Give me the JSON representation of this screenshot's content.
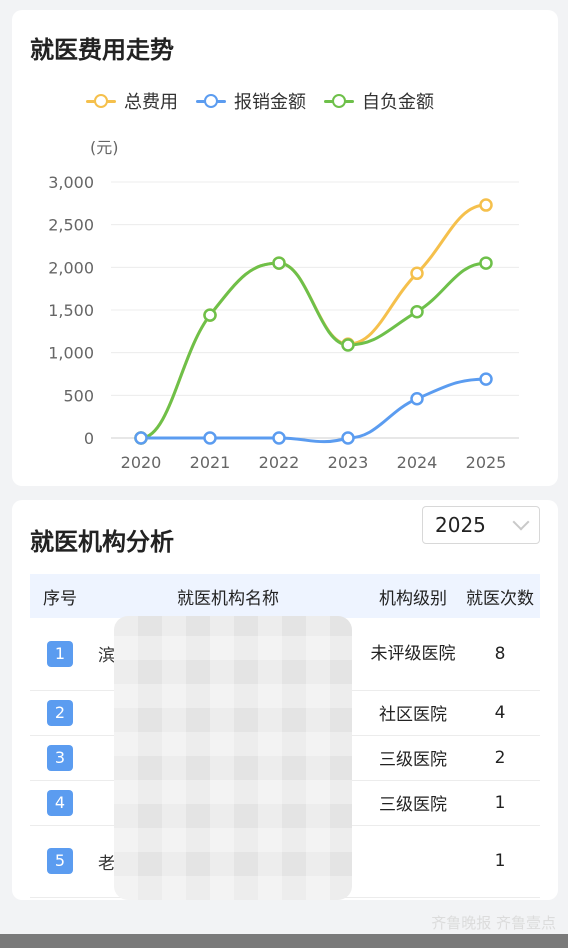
{
  "chart_card": {
    "title": "就医费用走势",
    "y_unit": "(元)"
  },
  "chart_data": {
    "type": "line",
    "categories": [
      "2020",
      "2021",
      "2022",
      "2023",
      "2024",
      "2025"
    ],
    "series": [
      {
        "name": "总费用",
        "color": "#f5c04c",
        "values": [
          0,
          1440,
          2050,
          1100,
          1930,
          2730
        ]
      },
      {
        "name": "报销金额",
        "color": "#5b9cf0",
        "values": [
          0,
          0,
          0,
          0,
          460,
          690
        ]
      },
      {
        "name": "自负金额",
        "color": "#6ec04a",
        "values": [
          0,
          1440,
          2050,
          1090,
          1480,
          2050
        ]
      }
    ],
    "ylim": [
      0,
      3000
    ],
    "yticks": [
      0,
      500,
      1000,
      1500,
      2000,
      2500,
      3000
    ],
    "ytick_labels": [
      "0",
      "500",
      "1,000",
      "1,500",
      "2,000",
      "2,500",
      "3,000"
    ],
    "ylabel": "(元)",
    "legend": "top",
    "grid": true
  },
  "table_card": {
    "title": "就医机构分析",
    "year_selected": "2025",
    "headers": [
      "序号",
      "就医机构名称",
      "机构级别",
      "就医次数"
    ],
    "rows": [
      {
        "idx": "1",
        "name": "滨",
        "level": "未评级医院",
        "count": "8"
      },
      {
        "idx": "2",
        "name": "",
        "level": "社区医院",
        "count": "4"
      },
      {
        "idx": "3",
        "name": "",
        "level": "三级医院",
        "count": "2"
      },
      {
        "idx": "4",
        "name": "",
        "level": "三级医院",
        "count": "1"
      },
      {
        "idx": "5",
        "name": "老",
        "level": "",
        "count": "1"
      }
    ]
  },
  "watermark": "齐鲁晚报 齐鲁壹点"
}
